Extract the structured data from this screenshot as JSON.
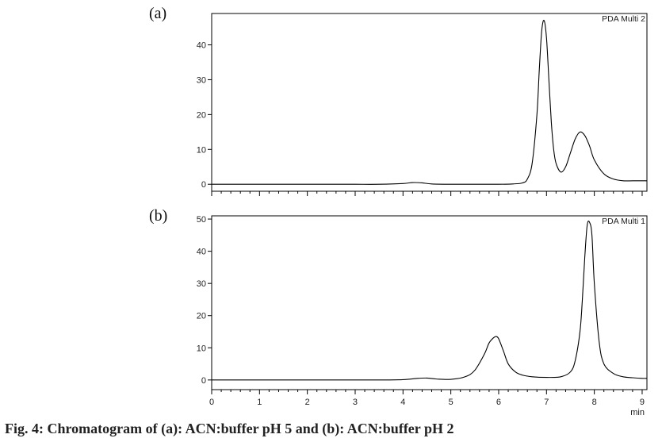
{
  "caption": "Fig. 4: Chromatogram of (a): ACN:buffer pH 5 and (b): ACN:buffer pH 2",
  "chart_data": [
    {
      "type": "line",
      "panel_label": "(a)",
      "detector_label": "PDA Multi 2",
      "xlabel": "",
      "ylabel": "",
      "xlim": [
        0,
        9.1
      ],
      "ylim": [
        -2,
        49
      ],
      "yticks": [
        0,
        10,
        20,
        30,
        40
      ],
      "grid": false,
      "color": "#000000",
      "series": [
        {
          "x": [
            0,
            0.5,
            1,
            1.5,
            2,
            2.5,
            3,
            3.5,
            4,
            4.2,
            4.4,
            4.6,
            5,
            5.5,
            6,
            6.3,
            6.5,
            6.6,
            6.7,
            6.8,
            6.85,
            6.9,
            6.95,
            7.0,
            7.05,
            7.1,
            7.15,
            7.2,
            7.3,
            7.4,
            7.5,
            7.6,
            7.7,
            7.8,
            7.9,
            8.0,
            8.2,
            8.4,
            8.6,
            8.8,
            9.0,
            9.1
          ],
          "y": [
            0,
            0,
            0,
            0,
            0,
            0,
            0,
            0,
            0.2,
            0.5,
            0.4,
            0.1,
            0,
            0,
            0,
            0.1,
            0.4,
            1.5,
            6,
            20,
            33,
            44,
            47,
            42,
            30,
            18,
            10,
            6,
            3.5,
            5,
            9,
            13,
            15,
            14,
            11,
            7,
            3,
            1.5,
            1,
            1,
            1,
            1
          ]
        }
      ]
    },
    {
      "type": "line",
      "panel_label": "(b)",
      "detector_label": "PDA Multi 1",
      "xlabel": "min",
      "ylabel": "",
      "xlim": [
        0,
        9.1
      ],
      "ylim": [
        -3,
        51
      ],
      "yticks": [
        0,
        10,
        20,
        30,
        40,
        50
      ],
      "xticks": [
        0,
        1,
        2,
        3,
        4,
        5,
        6,
        7,
        8,
        9
      ],
      "grid": false,
      "color": "#000000",
      "series": [
        {
          "x": [
            0,
            0.5,
            1,
            1.5,
            2,
            2.5,
            3,
            3.5,
            4,
            4.3,
            4.5,
            4.7,
            5,
            5.3,
            5.5,
            5.7,
            5.8,
            5.9,
            5.95,
            6.0,
            6.1,
            6.2,
            6.35,
            6.5,
            6.7,
            7.0,
            7.3,
            7.5,
            7.6,
            7.7,
            7.75,
            7.8,
            7.85,
            7.9,
            7.95,
            8.0,
            8.1,
            8.2,
            8.4,
            8.6,
            8.8,
            9.0,
            9.1
          ],
          "y": [
            0,
            0,
            0,
            0,
            0,
            0,
            0,
            0,
            0.1,
            0.5,
            0.6,
            0.3,
            0.2,
            1,
            3,
            8,
            11.5,
            13.2,
            13.5,
            12.8,
            9,
            5,
            2.5,
            1.5,
            1,
            0.8,
            1,
            2.5,
            6,
            15,
            25,
            38,
            48,
            49,
            45,
            30,
            12,
            5,
            2,
            1,
            0.7,
            0.5,
            0.5
          ]
        }
      ]
    }
  ]
}
